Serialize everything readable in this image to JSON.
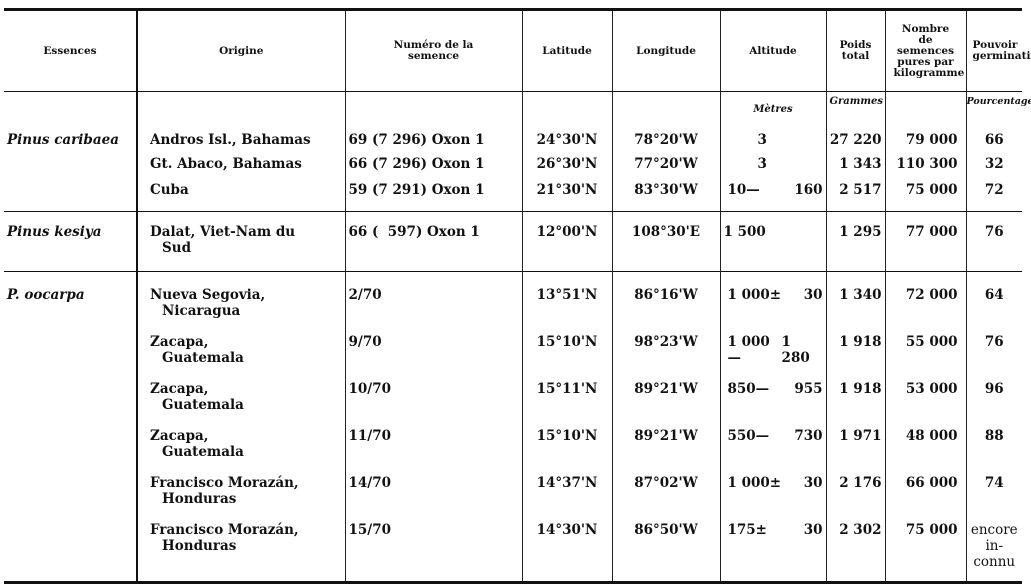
{
  "headers": [
    "Essences",
    "Origine",
    "Numéro de la semence",
    "Latitude",
    "Longitude",
    "Altitude",
    "Poids total",
    "Nombre de semences pures par kilogramme",
    "Pouvoir germinatif"
  ],
  "units": {
    "altitude": "Mètres",
    "poids": "Grammes",
    "pouvoir": "Pourcentage"
  },
  "sections": [
    {
      "essence": "Pinus caribaea",
      "rows": [
        {
          "origine": "Andros Isl., Bahamas",
          "origine2": "",
          "numero": "69 (7 296) Oxon 1",
          "lat": "24°30'N",
          "lon": "78°20'W",
          "alt_a": "3",
          "alt_b": "",
          "poids": "27 220",
          "nombre": "79 000",
          "pouvoir": "66"
        },
        {
          "origine": "Gt. Abaco, Bahamas",
          "origine2": "",
          "numero": "66 (7 296) Oxon 1",
          "lat": "26°30'N",
          "lon": "77°20'W",
          "alt_a": "3",
          "alt_b": "",
          "poids": "1 343",
          "nombre": "110 300",
          "pouvoir": "32"
        },
        {
          "origine": "Cuba",
          "origine2": "",
          "numero": "59 (7 291) Oxon 1",
          "lat": "21°30'N",
          "lon": "83°30'W",
          "alt_a": "10—",
          "alt_b": "160",
          "poids": "2 517",
          "nombre": "75 000",
          "pouvoir": "72"
        }
      ]
    },
    {
      "essence": "Pinus kesiya",
      "rows": [
        {
          "origine": "Dalat, Viet-Nam du",
          "origine2": "Sud",
          "numero": "66 (  597) Oxon 1",
          "lat": "12°00'N",
          "lon": "108°30'E",
          "alt_a": "1 500",
          "alt_b": "",
          "poids": "1 295",
          "nombre": "77 000",
          "pouvoir": "76"
        }
      ]
    },
    {
      "essence": "P. oocarpa",
      "rows": [
        {
          "origine": "Nueva Segovia,",
          "origine2": "Nicaragua",
          "numero": "2/70",
          "lat": "13°51'N",
          "lon": "86°16'W",
          "alt_a": "1 000±",
          "alt_b": "30",
          "poids": "1 340",
          "nombre": "72 000",
          "pouvoir": "64"
        },
        {
          "origine": "Zacapa,",
          "origine2": "Guatemala",
          "numero": "9/70",
          "lat": "15°10'N",
          "lon": "98°23'W",
          "alt_a": "1 000—",
          "alt_b": "1 280",
          "poids": "1 918",
          "nombre": "55 000",
          "pouvoir": "76"
        },
        {
          "origine": "Zacapa,",
          "origine2": "Guatemala",
          "numero": "10/70",
          "lat": "15°11'N",
          "lon": "89°21'W",
          "alt_a": "850—",
          "alt_b": "955",
          "poids": "1 918",
          "nombre": "53 000",
          "pouvoir": "96"
        },
        {
          "origine": "Zacapa,",
          "origine2": "Guatemala",
          "numero": "11/70",
          "lat": "15°10'N",
          "lon": "89°21'W",
          "alt_a": "550—",
          "alt_b": "730",
          "poids": "1 971",
          "nombre": "48 000",
          "pouvoir": "88"
        },
        {
          "origine": "Francisco Morazán,",
          "origine2": "Honduras",
          "numero": "14/70",
          "lat": "14°37'N",
          "lon": "87°02'W",
          "alt_a": "1 000±",
          "alt_b": "30",
          "poids": "2 176",
          "nombre": "66 000",
          "pouvoir": "74"
        },
        {
          "origine": "Francisco Morazán,",
          "origine2": "Honduras",
          "numero": "15/70",
          "lat": "14°30'N",
          "lon": "86°50'W",
          "alt_a": "175±",
          "alt_b": "30",
          "poids": "2 302",
          "nombre": "75 000",
          "pouvoir": "encore in- connu"
        }
      ]
    }
  ]
}
